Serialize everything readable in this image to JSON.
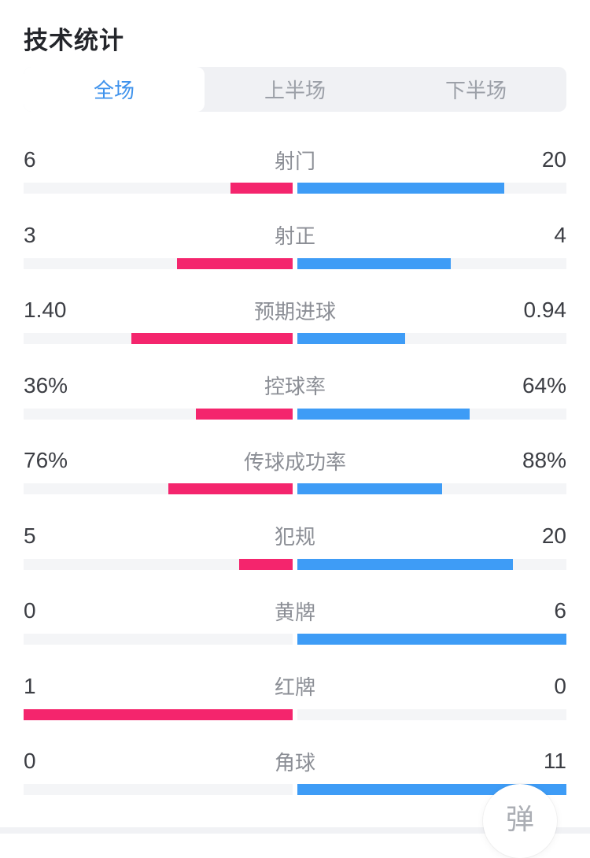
{
  "header": {
    "title": "技术统计"
  },
  "tabs": [
    {
      "id": "full",
      "label": "全场",
      "active": true
    },
    {
      "id": "first-half",
      "label": "上半场",
      "active": false
    },
    {
      "id": "second-half",
      "label": "下半场",
      "active": false
    }
  ],
  "colors": {
    "home": "#f4256d",
    "away": "#3e9cf6",
    "track": "#f4f5f7",
    "tab_active_text": "#3e92ec"
  },
  "chart_data": {
    "type": "bar",
    "title": "技术统计",
    "legend_note": "home=pink (left), away=blue (right); bar length = value / (home+away) of half track",
    "rows": [
      {
        "label": "射门",
        "home": "6",
        "away": "20",
        "home_pct": 23.1,
        "away_pct": 76.9
      },
      {
        "label": "射正",
        "home": "3",
        "away": "4",
        "home_pct": 42.9,
        "away_pct": 57.1
      },
      {
        "label": "预期进球",
        "home": "1.40",
        "away": "0.94",
        "home_pct": 59.8,
        "away_pct": 40.2
      },
      {
        "label": "控球率",
        "home": "36%",
        "away": "64%",
        "home_pct": 36,
        "away_pct": 64
      },
      {
        "label": "传球成功率",
        "home": "76%",
        "away": "88%",
        "home_pct": 46.3,
        "away_pct": 53.7
      },
      {
        "label": "犯规",
        "home": "5",
        "away": "20",
        "home_pct": 20,
        "away_pct": 80
      },
      {
        "label": "黄牌",
        "home": "0",
        "away": "6",
        "home_pct": 0,
        "away_pct": 100
      },
      {
        "label": "红牌",
        "home": "1",
        "away": "0",
        "home_pct": 100,
        "away_pct": 0
      },
      {
        "label": "角球",
        "home": "0",
        "away": "11",
        "home_pct": 0,
        "away_pct": 100
      }
    ]
  },
  "float_button": {
    "label": "弹"
  }
}
